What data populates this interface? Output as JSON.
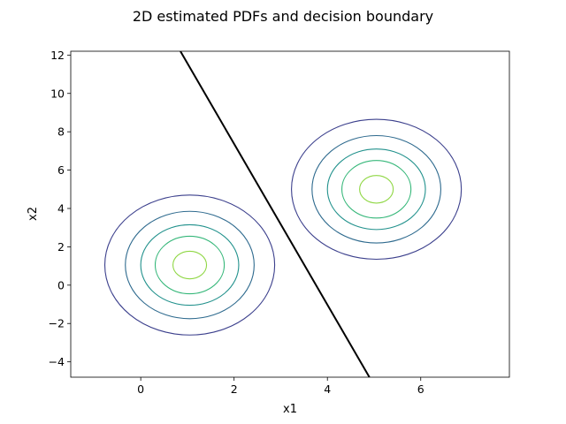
{
  "chart_data": {
    "type": "contour",
    "title": "2D estimated PDFs and decision boundary",
    "xlabel": "x1",
    "ylabel": "x2",
    "xlim": [
      -1.5,
      7.9
    ],
    "ylim": [
      -4.8,
      12.2
    ],
    "xticks": [
      0,
      2,
      4,
      6
    ],
    "yticks": [
      -4,
      -2,
      0,
      2,
      4,
      6,
      8,
      10,
      12
    ],
    "grid": false,
    "distributions": [
      {
        "center": [
          1.05,
          1.05
        ],
        "contours": [
          {
            "rx": 1.82,
            "ry": 3.65,
            "color": "#3b3f8c"
          },
          {
            "rx": 1.38,
            "ry": 2.8,
            "color": "#2e6a8e"
          },
          {
            "rx": 1.05,
            "ry": 2.1,
            "color": "#21918c"
          },
          {
            "rx": 0.74,
            "ry": 1.5,
            "color": "#35b779"
          },
          {
            "rx": 0.36,
            "ry": 0.72,
            "color": "#8fd744"
          }
        ]
      },
      {
        "center": [
          5.05,
          5.0
        ],
        "contours": [
          {
            "rx": 1.82,
            "ry": 3.65,
            "color": "#3b3f8c"
          },
          {
            "rx": 1.38,
            "ry": 2.8,
            "color": "#2e6a8e"
          },
          {
            "rx": 1.05,
            "ry": 2.1,
            "color": "#21918c"
          },
          {
            "rx": 0.74,
            "ry": 1.5,
            "color": "#35b779"
          },
          {
            "rx": 0.36,
            "ry": 0.72,
            "color": "#8fd744"
          }
        ]
      }
    ],
    "decision_boundary": {
      "points": [
        [
          0.85,
          12.2
        ],
        [
          4.9,
          -4.8
        ]
      ],
      "color": "#000000"
    }
  }
}
